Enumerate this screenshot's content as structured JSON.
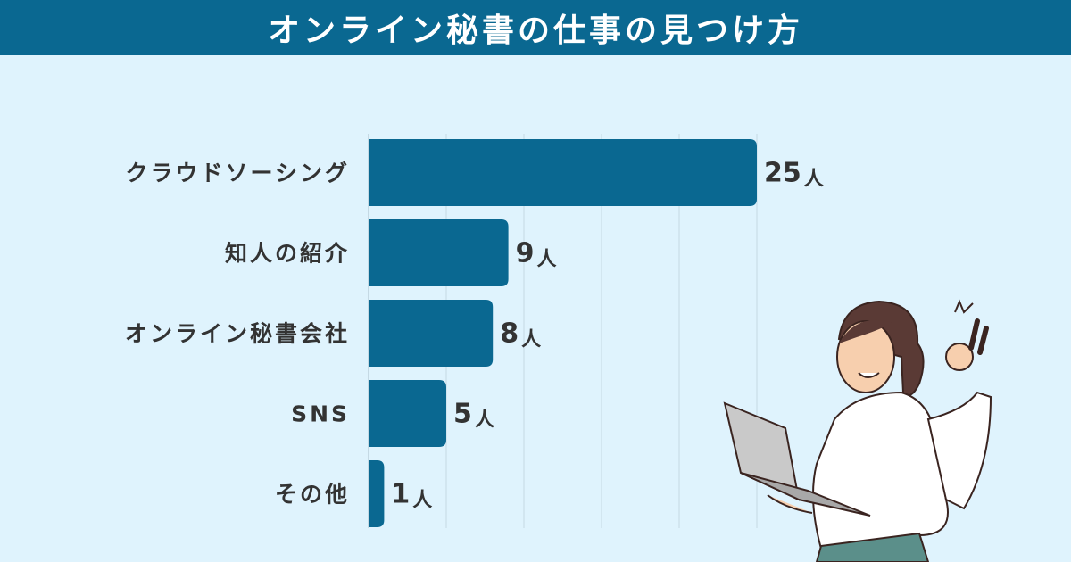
{
  "header": {
    "title": "オンライン秘書の仕事の見つけ方"
  },
  "colors": {
    "bar": "#0a6891",
    "background": "#dff3fd",
    "header": "#0a6891",
    "grid": "#c5d9e4"
  },
  "chart_data": {
    "type": "bar",
    "orientation": "horizontal",
    "title": "オンライン秘書の仕事の見つけ方",
    "categories": [
      "クラウドソーシング",
      "知人の紹介",
      "オンライン秘書会社",
      "SNS",
      "その他"
    ],
    "values": [
      25,
      9,
      8,
      5,
      1
    ],
    "unit": "人",
    "xlim": [
      0,
      25
    ],
    "grid": true,
    "grid_step": 5,
    "legend": "none"
  },
  "illustration": "woman-with-laptop-ok-sign"
}
